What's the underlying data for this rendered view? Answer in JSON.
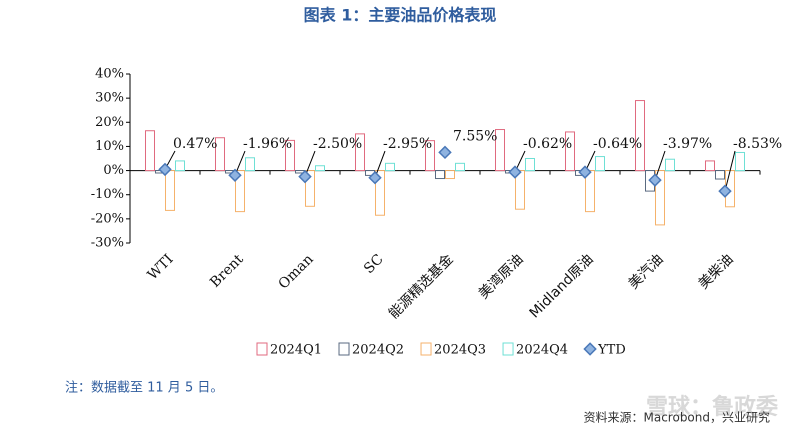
{
  "chart_data": {
    "type": "bar",
    "title": "图表 1：主要油品价格表现",
    "categories": [
      "WTI",
      "Brent",
      "Oman",
      "SC",
      "能源精选基金",
      "美湾原油",
      "Midland原油",
      "美汽油",
      "美柴油"
    ],
    "series": [
      {
        "name": "2024Q1",
        "color": "#e06a7f",
        "values": [
          16.5,
          13.6,
          12.5,
          15.2,
          12.4,
          17,
          16,
          29,
          4
        ]
      },
      {
        "name": "2024Q2",
        "color": "#5a6a80",
        "values": [
          -1,
          -1,
          -1,
          -2,
          -3.3,
          -1,
          -2,
          -8.5,
          -3.5
        ]
      },
      {
        "name": "2024Q3",
        "color": "#f5b26b",
        "values": [
          -16.5,
          -17,
          -14.8,
          -18.5,
          -3.3,
          -16,
          -17,
          -22.5,
          -15
        ]
      },
      {
        "name": "2024Q4",
        "color": "#6ee0d5",
        "values": [
          4,
          5.3,
          2,
          3,
          3,
          5,
          5.8,
          4.7,
          7.5
        ]
      },
      {
        "name": "YTD",
        "color": "#8fb3e0",
        "type": "scatter",
        "values": [
          0.47,
          -1.96,
          -2.5,
          -2.95,
          7.55,
          -0.62,
          -0.64,
          -3.97,
          -8.53
        ],
        "value_labels": [
          "0.47%",
          "-1.96%",
          "-2.50%",
          "-2.95%",
          "7.55%",
          "-0.62%",
          "-0.64%",
          "-3.97%",
          "-8.53%"
        ]
      }
    ],
    "ylim": [
      -30,
      40
    ],
    "yticks": [
      {
        "value": -30,
        "label": "-30%"
      },
      {
        "value": -20,
        "label": "-20%"
      },
      {
        "value": -10,
        "label": "-10%"
      },
      {
        "value": 0,
        "label": "0%"
      },
      {
        "value": 10,
        "label": "10%"
      },
      {
        "value": 20,
        "label": "20%"
      },
      {
        "value": 30,
        "label": "30%"
      },
      {
        "value": 40,
        "label": "40%"
      }
    ],
    "grid": false,
    "note": "注：数据截至 11 月 5 日。",
    "source": "资料来源：Macrobond，兴业研究",
    "watermark": "雪球：鲁政委"
  }
}
